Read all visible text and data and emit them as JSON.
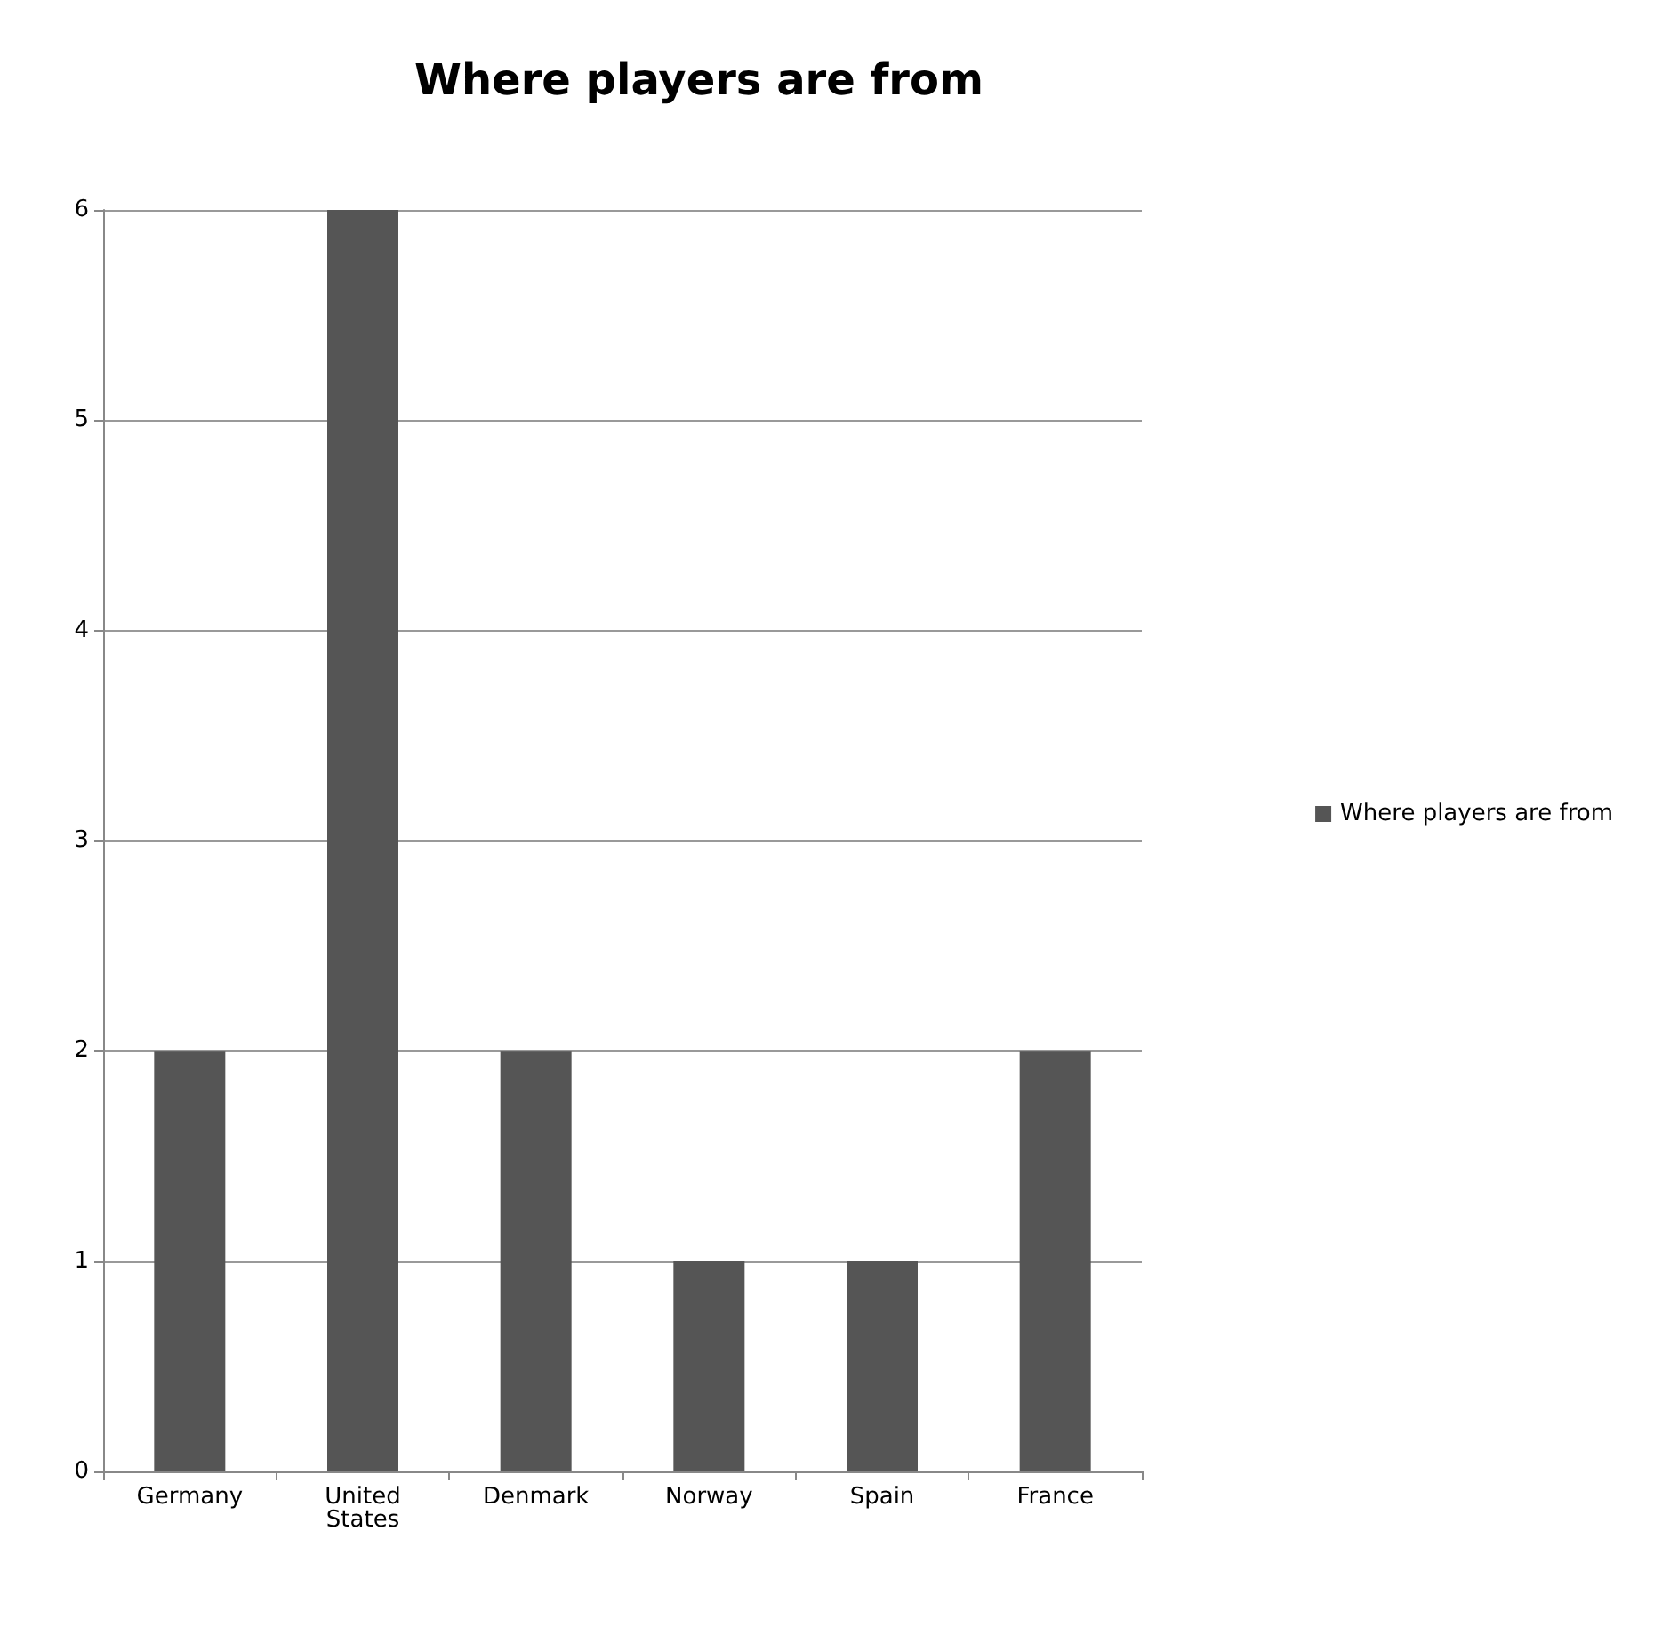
{
  "chart_data": {
    "type": "bar",
    "title": "Where players are from",
    "categories": [
      "Germany",
      "United\nStates",
      "Denmark",
      "Norway",
      "Spain",
      "France"
    ],
    "series": [
      {
        "name": "Where players are from",
        "color": "#555555",
        "values": [
          2,
          6,
          2,
          1,
          1,
          2
        ]
      }
    ],
    "ylim": [
      0,
      6
    ],
    "yticks": [
      0,
      1,
      2,
      3,
      4,
      5,
      6
    ],
    "grid": "y",
    "legend": "right"
  }
}
